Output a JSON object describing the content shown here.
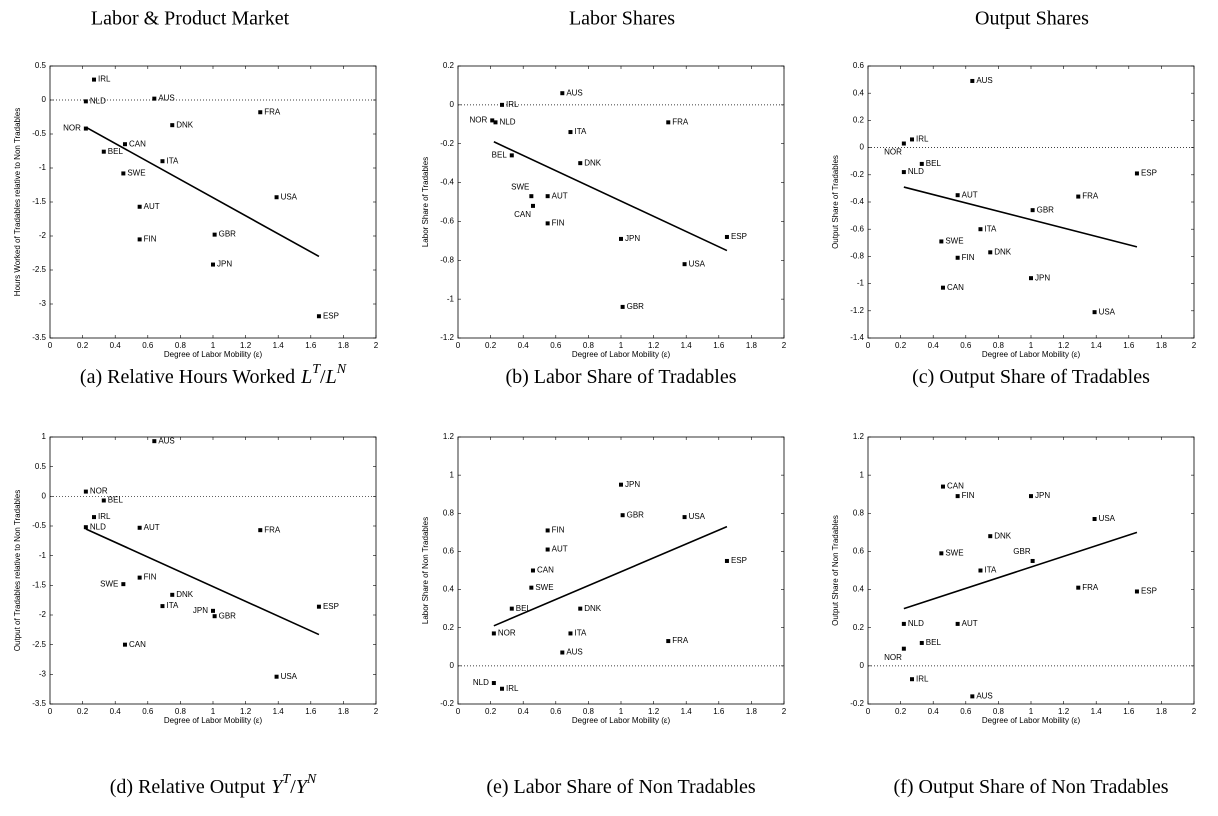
{
  "column_titles": [
    "Labor & Product Market",
    "Labor Shares",
    "Output Shares"
  ],
  "chart_data": [
    {
      "type": "scatter",
      "caption": "(a) Relative Hours Worked",
      "caption_math": {
        "base1": "L",
        "sup1": "T",
        "sep": "/",
        "base2": "L",
        "sup2": "N"
      },
      "x_label": "Degree of Labor Mobility (ε)",
      "y_label": "Hours Worked of Tradables relative to Non Tradables",
      "categories": [
        "IRL",
        "NLD",
        "AUS",
        "DNK",
        "FRA",
        "NOR",
        "CAN",
        "BEL",
        "ITA",
        "SWE",
        "AUT",
        "USA",
        "GBR",
        "FIN",
        "JPN",
        "ESP"
      ],
      "x": [
        0.27,
        0.22,
        0.64,
        0.75,
        1.29,
        0.22,
        0.46,
        0.33,
        0.69,
        0.45,
        0.55,
        1.39,
        1.01,
        0.55,
        1.0,
        1.65
      ],
      "values": [
        0.3,
        -0.02,
        0.02,
        -0.37,
        -0.18,
        -0.42,
        -0.65,
        -0.76,
        -0.9,
        -1.08,
        -1.57,
        -1.43,
        -1.98,
        -2.05,
        -2.42,
        -3.18
      ],
      "line": {
        "x": [
          0.22,
          1.65
        ],
        "values": [
          -0.4,
          -2.3
        ]
      },
      "hline": 0,
      "xlim": [
        0,
        2
      ],
      "xticks": [
        0,
        0.2,
        0.4,
        0.6,
        0.8,
        1,
        1.2,
        1.4,
        1.6,
        1.8,
        2
      ],
      "ylim": [
        -3.5,
        0.5
      ],
      "yticks": [
        -3.5,
        -3,
        -2.5,
        -2,
        -1.5,
        -1,
        -0.5,
        0,
        0.5
      ],
      "color": "#000000"
    },
    {
      "type": "scatter",
      "caption": "(b) Labor Share of Tradables",
      "x_label": "Degree of Labor Mobility (ε)",
      "y_label": "Labor Share of Tradables",
      "categories": [
        "IRL",
        "AUS",
        "NOR",
        "NLD",
        "ITA",
        "FRA",
        "BEL",
        "DNK",
        "SWE",
        "AUT",
        "CAN",
        "FIN",
        "JPN",
        "ESP",
        "USA",
        "GBR"
      ],
      "x": [
        0.27,
        0.64,
        0.21,
        0.23,
        0.69,
        1.29,
        0.33,
        0.75,
        0.45,
        0.55,
        0.46,
        0.55,
        1.0,
        1.65,
        1.39,
        1.01
      ],
      "values": [
        0.0,
        0.06,
        -0.08,
        -0.09,
        -0.14,
        -0.09,
        -0.26,
        -0.3,
        -0.47,
        -0.47,
        -0.52,
        -0.61,
        -0.69,
        -0.68,
        -0.82,
        -1.04
      ],
      "line": {
        "x": [
          0.22,
          1.65
        ],
        "values": [
          -0.19,
          -0.75
        ]
      },
      "hline": 0,
      "xlim": [
        0,
        2
      ],
      "xticks": [
        0,
        0.2,
        0.4,
        0.6,
        0.8,
        1,
        1.2,
        1.4,
        1.6,
        1.8,
        2
      ],
      "ylim": [
        -1.2,
        0.2
      ],
      "yticks": [
        -1.2,
        -1,
        -0.8,
        -0.6,
        -0.4,
        -0.2,
        0,
        0.2
      ],
      "color": "#000000"
    },
    {
      "type": "scatter",
      "caption": "(c) Output Share of Tradables",
      "x_label": "Degree of Labor Mobility (ε)",
      "y_label": "Output Share of Tradables",
      "categories": [
        "AUS",
        "IRL",
        "NOR",
        "BEL",
        "NLD",
        "ESP",
        "AUT",
        "FRA",
        "GBR",
        "ITA",
        "SWE",
        "DNK",
        "FIN",
        "JPN",
        "CAN",
        "USA"
      ],
      "x": [
        0.64,
        0.27,
        0.22,
        0.33,
        0.22,
        1.65,
        0.55,
        1.29,
        1.01,
        0.69,
        0.45,
        0.75,
        0.55,
        1.0,
        0.46,
        1.39
      ],
      "values": [
        0.49,
        0.06,
        0.03,
        -0.12,
        -0.18,
        -0.19,
        -0.35,
        -0.36,
        -0.46,
        -0.6,
        -0.69,
        -0.77,
        -0.81,
        -0.96,
        -1.03,
        -1.21
      ],
      "line": {
        "x": [
          0.22,
          1.65
        ],
        "values": [
          -0.29,
          -0.73
        ]
      },
      "hline": 0,
      "xlim": [
        0,
        2
      ],
      "xticks": [
        0,
        0.2,
        0.4,
        0.6,
        0.8,
        1,
        1.2,
        1.4,
        1.6,
        1.8,
        2
      ],
      "ylim": [
        -1.4,
        0.6
      ],
      "yticks": [
        -1.4,
        -1.2,
        -1,
        -0.8,
        -0.6,
        -0.4,
        -0.2,
        0,
        0.2,
        0.4,
        0.6
      ],
      "color": "#000000"
    },
    {
      "type": "scatter",
      "caption": "(d) Relative Output",
      "caption_math": {
        "base1": "Y",
        "sup1": "T",
        "sep": "/",
        "base2": "Y",
        "sup2": "N"
      },
      "x_label": "Degree of Labor Mobility (ε)",
      "y_label": "Output of Tradables relative to Non Tradables",
      "categories": [
        "AUS",
        "NOR",
        "BEL",
        "IRL",
        "NLD",
        "AUT",
        "FRA",
        "FIN",
        "SWE",
        "DNK",
        "ITA",
        "ESP",
        "JPN",
        "GBR",
        "CAN",
        "USA"
      ],
      "x": [
        0.64,
        0.22,
        0.33,
        0.27,
        0.22,
        0.55,
        1.29,
        0.55,
        0.45,
        0.75,
        0.69,
        1.65,
        1.0,
        1.01,
        0.46,
        1.39
      ],
      "values": [
        0.93,
        0.08,
        -0.07,
        -0.35,
        -0.52,
        -0.53,
        -0.57,
        -1.37,
        -1.48,
        -1.66,
        -1.85,
        -1.86,
        -1.93,
        -2.02,
        -2.5,
        -3.04
      ],
      "line": {
        "x": [
          0.22,
          1.65
        ],
        "values": [
          -0.55,
          -2.33
        ]
      },
      "hline": 0,
      "xlim": [
        0,
        2
      ],
      "xticks": [
        0,
        0.2,
        0.4,
        0.6,
        0.8,
        1,
        1.2,
        1.4,
        1.6,
        1.8,
        2
      ],
      "ylim": [
        -3.5,
        1
      ],
      "yticks": [
        -3.5,
        -3,
        -2.5,
        -2,
        -1.5,
        -1,
        -0.5,
        0,
        0.5,
        1
      ],
      "color": "#000000"
    },
    {
      "type": "scatter",
      "caption": "(e) Labor Share of Non Tradables",
      "x_label": "Degree of Labor Mobility (ε)",
      "y_label": "Labor Share of Non Tradables",
      "categories": [
        "JPN",
        "GBR",
        "USA",
        "FIN",
        "AUT",
        "ESP",
        "CAN",
        "SWE",
        "BEL",
        "DNK",
        "ITA",
        "NOR",
        "FRA",
        "AUS",
        "NLD",
        "IRL"
      ],
      "x": [
        1.0,
        1.01,
        1.39,
        0.55,
        0.55,
        1.65,
        0.46,
        0.45,
        0.33,
        0.75,
        0.69,
        0.22,
        1.29,
        0.64,
        0.22,
        0.27
      ],
      "values": [
        0.95,
        0.79,
        0.78,
        0.71,
        0.61,
        0.55,
        0.5,
        0.41,
        0.3,
        0.3,
        0.17,
        0.17,
        0.13,
        0.07,
        -0.09,
        -0.12
      ],
      "line": {
        "x": [
          0.22,
          1.65
        ],
        "values": [
          0.21,
          0.73
        ]
      },
      "hline": 0,
      "xlim": [
        0,
        2
      ],
      "xticks": [
        0,
        0.2,
        0.4,
        0.6,
        0.8,
        1,
        1.2,
        1.4,
        1.6,
        1.8,
        2
      ],
      "ylim": [
        -0.2,
        1.2
      ],
      "yticks": [
        -0.2,
        0,
        0.2,
        0.4,
        0.6,
        0.8,
        1,
        1.2
      ],
      "color": "#000000"
    },
    {
      "type": "scatter",
      "caption": "(f) Output Share of Non Tradables",
      "x_label": "Degree of Labor Mobility (ε)",
      "y_label": "Output Share of Non Tradables",
      "categories": [
        "CAN",
        "FIN",
        "JPN",
        "USA",
        "DNK",
        "SWE",
        "GBR",
        "ITA",
        "FRA",
        "ESP",
        "NLD",
        "AUT",
        "BEL",
        "NOR",
        "IRL",
        "AUS"
      ],
      "x": [
        0.46,
        0.55,
        1.0,
        1.39,
        0.75,
        0.45,
        1.01,
        0.69,
        1.29,
        1.65,
        0.22,
        0.55,
        0.33,
        0.22,
        0.27,
        0.64
      ],
      "values": [
        0.94,
        0.89,
        0.89,
        0.77,
        0.68,
        0.59,
        0.55,
        0.5,
        0.41,
        0.39,
        0.22,
        0.22,
        0.12,
        0.09,
        -0.07,
        -0.16
      ],
      "line": {
        "x": [
          0.22,
          1.65
        ],
        "values": [
          0.3,
          0.7
        ]
      },
      "hline": 0,
      "xlim": [
        0,
        2
      ],
      "xticks": [
        0,
        0.2,
        0.4,
        0.6,
        0.8,
        1,
        1.2,
        1.4,
        1.6,
        1.8,
        2
      ],
      "ylim": [
        -0.2,
        1.2
      ],
      "yticks": [
        -0.2,
        0,
        0.2,
        0.4,
        0.6,
        0.8,
        1,
        1.2
      ],
      "color": "#000000"
    }
  ]
}
